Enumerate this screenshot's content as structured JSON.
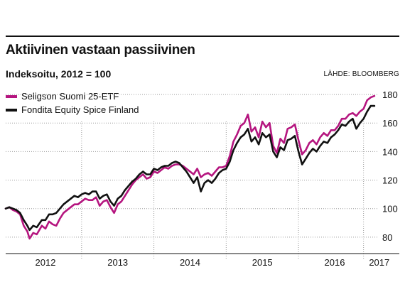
{
  "header": {
    "title": "Aktiivinen vastaan passiivinen",
    "subtitle": "Indeksoitu, 2012 = 100",
    "source": "LÄHDE: BLOOMBERG"
  },
  "chart_data": {
    "type": "line",
    "x_unit": "year",
    "xlim": [
      2011.95,
      2017.1
    ],
    "ylim": [
      70,
      185
    ],
    "x_ticks": [
      {
        "value": 2012,
        "label": "2012"
      },
      {
        "value": 2013,
        "label": "2013"
      },
      {
        "value": 2014,
        "label": "2014"
      },
      {
        "value": 2015,
        "label": "2015"
      },
      {
        "value": 2016,
        "label": "2016"
      },
      {
        "value": 2017,
        "label": "2017"
      }
    ],
    "x_gridlines": [
      2013.0,
      2014.0,
      2015.0,
      2016.0,
      2016.9
    ],
    "y_ticks": [
      80,
      100,
      120,
      140,
      160,
      180
    ],
    "grid": "horizontal dotted, vertical dashed",
    "legend": "top-left",
    "series": [
      {
        "name": "Seligson Suomi 25-ETF",
        "color": "#b5157f",
        "points": [
          [
            2011.95,
            100
          ],
          [
            2012.0,
            101
          ],
          [
            2012.05,
            99
          ],
          [
            2012.1,
            98
          ],
          [
            2012.15,
            96
          ],
          [
            2012.2,
            88
          ],
          [
            2012.25,
            84
          ],
          [
            2012.28,
            79
          ],
          [
            2012.33,
            83
          ],
          [
            2012.38,
            82
          ],
          [
            2012.45,
            88
          ],
          [
            2012.5,
            86
          ],
          [
            2012.55,
            91
          ],
          [
            2012.6,
            89
          ],
          [
            2012.65,
            88
          ],
          [
            2012.7,
            93
          ],
          [
            2012.75,
            97
          ],
          [
            2012.8,
            99
          ],
          [
            2012.85,
            101
          ],
          [
            2012.9,
            103
          ],
          [
            2012.95,
            103
          ],
          [
            2013.0,
            105
          ],
          [
            2013.05,
            107
          ],
          [
            2013.1,
            106
          ],
          [
            2013.15,
            106
          ],
          [
            2013.2,
            108
          ],
          [
            2013.25,
            102
          ],
          [
            2013.3,
            105
          ],
          [
            2013.35,
            106
          ],
          [
            2013.4,
            101
          ],
          [
            2013.45,
            97
          ],
          [
            2013.5,
            103
          ],
          [
            2013.55,
            105
          ],
          [
            2013.6,
            109
          ],
          [
            2013.65,
            113
          ],
          [
            2013.7,
            117
          ],
          [
            2013.75,
            120
          ],
          [
            2013.8,
            122
          ],
          [
            2013.85,
            124
          ],
          [
            2013.9,
            121
          ],
          [
            2013.95,
            122
          ],
          [
            2014.0,
            126
          ],
          [
            2014.05,
            125
          ],
          [
            2014.1,
            127
          ],
          [
            2014.15,
            129
          ],
          [
            2014.2,
            128
          ],
          [
            2014.25,
            130
          ],
          [
            2014.3,
            131
          ],
          [
            2014.35,
            131
          ],
          [
            2014.4,
            130
          ],
          [
            2014.45,
            128
          ],
          [
            2014.5,
            126
          ],
          [
            2014.55,
            124
          ],
          [
            2014.6,
            128
          ],
          [
            2014.65,
            122
          ],
          [
            2014.7,
            124
          ],
          [
            2014.75,
            125
          ],
          [
            2014.8,
            123
          ],
          [
            2014.85,
            126
          ],
          [
            2014.9,
            129
          ],
          [
            2014.95,
            129
          ],
          [
            2015.0,
            130
          ],
          [
            2015.05,
            137
          ],
          [
            2015.1,
            147
          ],
          [
            2015.15,
            152
          ],
          [
            2015.2,
            158
          ],
          [
            2015.25,
            160
          ],
          [
            2015.3,
            166
          ],
          [
            2015.35,
            154
          ],
          [
            2015.4,
            157
          ],
          [
            2015.45,
            150
          ],
          [
            2015.5,
            161
          ],
          [
            2015.55,
            157
          ],
          [
            2015.6,
            160
          ],
          [
            2015.65,
            144
          ],
          [
            2015.7,
            139
          ],
          [
            2015.75,
            149
          ],
          [
            2015.8,
            146
          ],
          [
            2015.85,
            156
          ],
          [
            2015.9,
            157
          ],
          [
            2015.95,
            159
          ],
          [
            2016.0,
            148
          ],
          [
            2016.05,
            138
          ],
          [
            2016.1,
            141
          ],
          [
            2016.15,
            146
          ],
          [
            2016.2,
            148
          ],
          [
            2016.25,
            145
          ],
          [
            2016.3,
            150
          ],
          [
            2016.35,
            153
          ],
          [
            2016.4,
            151
          ],
          [
            2016.45,
            155
          ],
          [
            2016.5,
            155
          ],
          [
            2016.55,
            158
          ],
          [
            2016.6,
            163
          ],
          [
            2016.65,
            163
          ],
          [
            2016.7,
            166
          ],
          [
            2016.75,
            167
          ],
          [
            2016.8,
            165
          ],
          [
            2016.85,
            168
          ],
          [
            2016.9,
            170
          ],
          [
            2016.95,
            176
          ],
          [
            2017.0,
            178
          ],
          [
            2017.05,
            179
          ]
        ]
      },
      {
        "name": "Fondita Equity Spice Finland",
        "color": "#111111",
        "points": [
          [
            2011.95,
            100
          ],
          [
            2012.0,
            101
          ],
          [
            2012.05,
            100
          ],
          [
            2012.1,
            99
          ],
          [
            2012.15,
            97
          ],
          [
            2012.2,
            92
          ],
          [
            2012.25,
            88
          ],
          [
            2012.28,
            85
          ],
          [
            2012.33,
            88
          ],
          [
            2012.38,
            87
          ],
          [
            2012.45,
            92
          ],
          [
            2012.5,
            92
          ],
          [
            2012.55,
            96
          ],
          [
            2012.6,
            96
          ],
          [
            2012.65,
            97
          ],
          [
            2012.7,
            100
          ],
          [
            2012.75,
            103
          ],
          [
            2012.8,
            105
          ],
          [
            2012.85,
            107
          ],
          [
            2012.9,
            109
          ],
          [
            2012.95,
            108
          ],
          [
            2013.0,
            110
          ],
          [
            2013.05,
            111
          ],
          [
            2013.1,
            110
          ],
          [
            2013.15,
            112
          ],
          [
            2013.2,
            112
          ],
          [
            2013.25,
            107
          ],
          [
            2013.3,
            109
          ],
          [
            2013.35,
            110
          ],
          [
            2013.4,
            105
          ],
          [
            2013.45,
            102
          ],
          [
            2013.5,
            107
          ],
          [
            2013.55,
            109
          ],
          [
            2013.6,
            113
          ],
          [
            2013.65,
            116
          ],
          [
            2013.7,
            119
          ],
          [
            2013.75,
            121
          ],
          [
            2013.8,
            124
          ],
          [
            2013.85,
            126
          ],
          [
            2013.9,
            124
          ],
          [
            2013.95,
            124
          ],
          [
            2014.0,
            128
          ],
          [
            2014.05,
            127
          ],
          [
            2014.1,
            129
          ],
          [
            2014.15,
            130
          ],
          [
            2014.2,
            130
          ],
          [
            2014.25,
            132
          ],
          [
            2014.3,
            133
          ],
          [
            2014.35,
            132
          ],
          [
            2014.4,
            129
          ],
          [
            2014.45,
            126
          ],
          [
            2014.5,
            122
          ],
          [
            2014.55,
            118
          ],
          [
            2014.6,
            122
          ],
          [
            2014.65,
            112
          ],
          [
            2014.7,
            118
          ],
          [
            2014.75,
            120
          ],
          [
            2014.8,
            118
          ],
          [
            2014.85,
            121
          ],
          [
            2014.9,
            125
          ],
          [
            2014.95,
            127
          ],
          [
            2015.0,
            128
          ],
          [
            2015.05,
            133
          ],
          [
            2015.1,
            141
          ],
          [
            2015.15,
            146
          ],
          [
            2015.2,
            150
          ],
          [
            2015.25,
            152
          ],
          [
            2015.3,
            156
          ],
          [
            2015.35,
            147
          ],
          [
            2015.4,
            150
          ],
          [
            2015.45,
            145
          ],
          [
            2015.5,
            153
          ],
          [
            2015.55,
            150
          ],
          [
            2015.6,
            152
          ],
          [
            2015.65,
            140
          ],
          [
            2015.7,
            136
          ],
          [
            2015.75,
            143
          ],
          [
            2015.8,
            141
          ],
          [
            2015.85,
            148
          ],
          [
            2015.9,
            149
          ],
          [
            2015.95,
            151
          ],
          [
            2016.0,
            140
          ],
          [
            2016.05,
            131
          ],
          [
            2016.1,
            135
          ],
          [
            2016.15,
            139
          ],
          [
            2016.2,
            142
          ],
          [
            2016.25,
            140
          ],
          [
            2016.3,
            144
          ],
          [
            2016.35,
            147
          ],
          [
            2016.4,
            146
          ],
          [
            2016.45,
            150
          ],
          [
            2016.5,
            152
          ],
          [
            2016.55,
            155
          ],
          [
            2016.6,
            159
          ],
          [
            2016.65,
            158
          ],
          [
            2016.7,
            161
          ],
          [
            2016.75,
            163
          ],
          [
            2016.8,
            156
          ],
          [
            2016.85,
            160
          ],
          [
            2016.9,
            163
          ],
          [
            2016.95,
            168
          ],
          [
            2017.0,
            172
          ],
          [
            2017.05,
            172
          ]
        ]
      }
    ]
  }
}
